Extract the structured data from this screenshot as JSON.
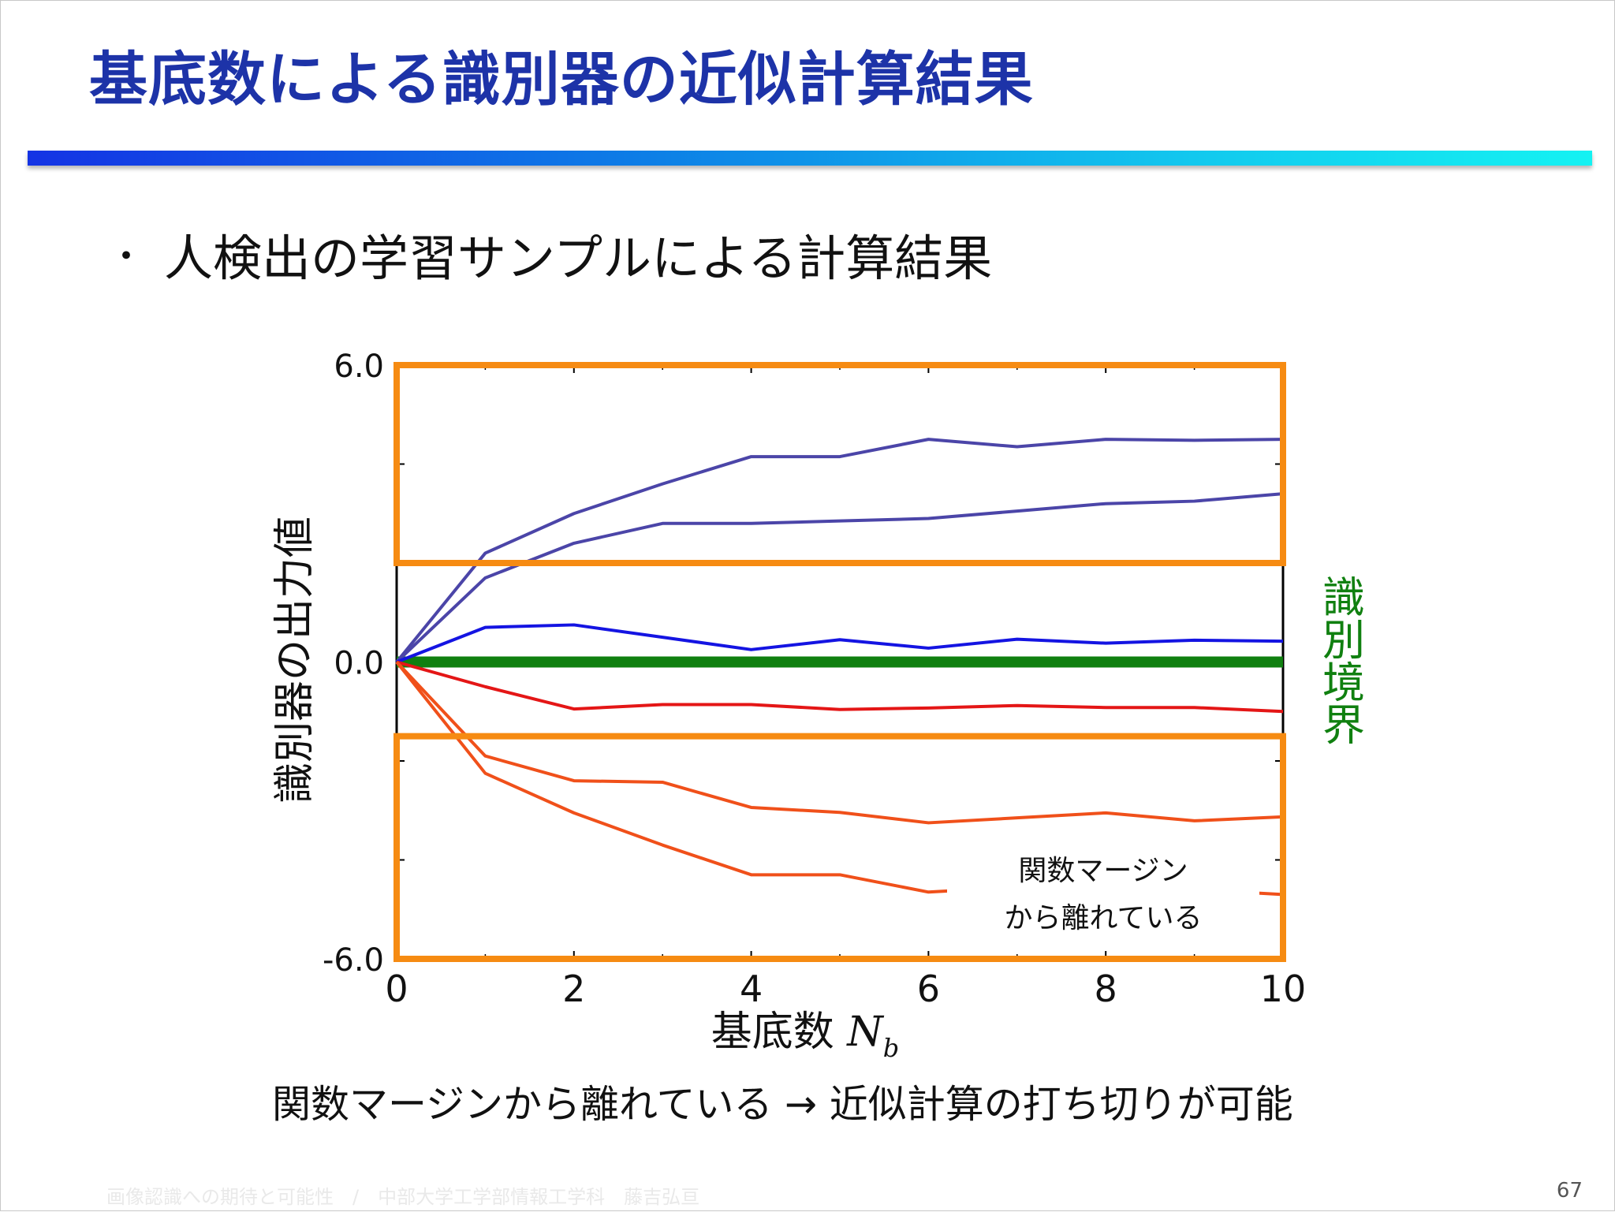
{
  "slide": {
    "title": "基底数による識別器の近似計算結果",
    "bullet_marker": "・",
    "bullet_text": "人検出の学習サンプルによる計算結果",
    "conclusion": "関数マージンから離れている → 近似計算の打ち切りが可能",
    "footer": "画像認識への期待と可能性　/　中部大学工学部情報工学科　藤吉弘亘",
    "page_number": "67"
  },
  "colors": {
    "title": "#1d33a8",
    "highlight_fill": "#fdfbb4",
    "highlight_border": "#f68b12",
    "boundary": "#108010",
    "positive_lines": [
      "#4b45a8",
      "#4b45a8",
      "#1414e2",
      "#1414e2"
    ],
    "negative_lines": [
      "#e41616",
      "#e41616",
      "#f0501a",
      "#f0501a"
    ]
  },
  "chart_data": {
    "type": "line",
    "x": [
      0,
      1,
      2,
      3,
      4,
      5,
      6,
      7,
      8,
      9,
      10
    ],
    "xlim": [
      0,
      10
    ],
    "ylim": [
      -6,
      6
    ],
    "x_ticks": [
      "0",
      "2",
      "4",
      "6",
      "8",
      "10"
    ],
    "y_ticks": [
      "6.0",
      "0.0",
      "-6.0"
    ],
    "xlabel": "基底数",
    "xlabel_var": "N",
    "xlabel_sub": "b",
    "ylabel": "識別器の出力値",
    "boundary_label": "識別境界",
    "boundary_value": 0,
    "annotation": [
      "関数マージン",
      "から離れている"
    ],
    "margin_bands": [
      {
        "from": 2.0,
        "to": 6.0
      },
      {
        "from": -6.0,
        "to": -1.5
      }
    ],
    "series": [
      {
        "values": [
          0,
          2.2,
          3.0,
          3.6,
          4.15,
          4.15,
          4.5,
          4.35,
          4.5,
          4.48,
          4.5
        ]
      },
      {
        "values": [
          0,
          1.7,
          2.4,
          2.8,
          2.8,
          2.85,
          2.9,
          3.05,
          3.2,
          3.25,
          3.4
        ]
      },
      {
        "values": [
          0,
          0.7,
          0.75,
          0.5,
          0.25,
          0.45,
          0.28,
          0.46,
          0.38,
          0.44,
          0.42
        ]
      },
      {
        "values": [
          0,
          -0.5,
          -0.95,
          -0.86,
          -0.86,
          -0.96,
          -0.93,
          -0.88,
          -0.92,
          -0.92,
          -1.0
        ]
      },
      {
        "values": [
          0,
          -1.9,
          -2.4,
          -2.43,
          -2.94,
          -3.04,
          -3.25,
          -3.15,
          -3.05,
          -3.21,
          -3.13
        ]
      },
      {
        "values": [
          0,
          -2.25,
          -3.05,
          -3.7,
          -4.3,
          -4.3,
          -4.65,
          -4.55,
          -4.5,
          -4.6,
          -4.7
        ]
      }
    ]
  }
}
